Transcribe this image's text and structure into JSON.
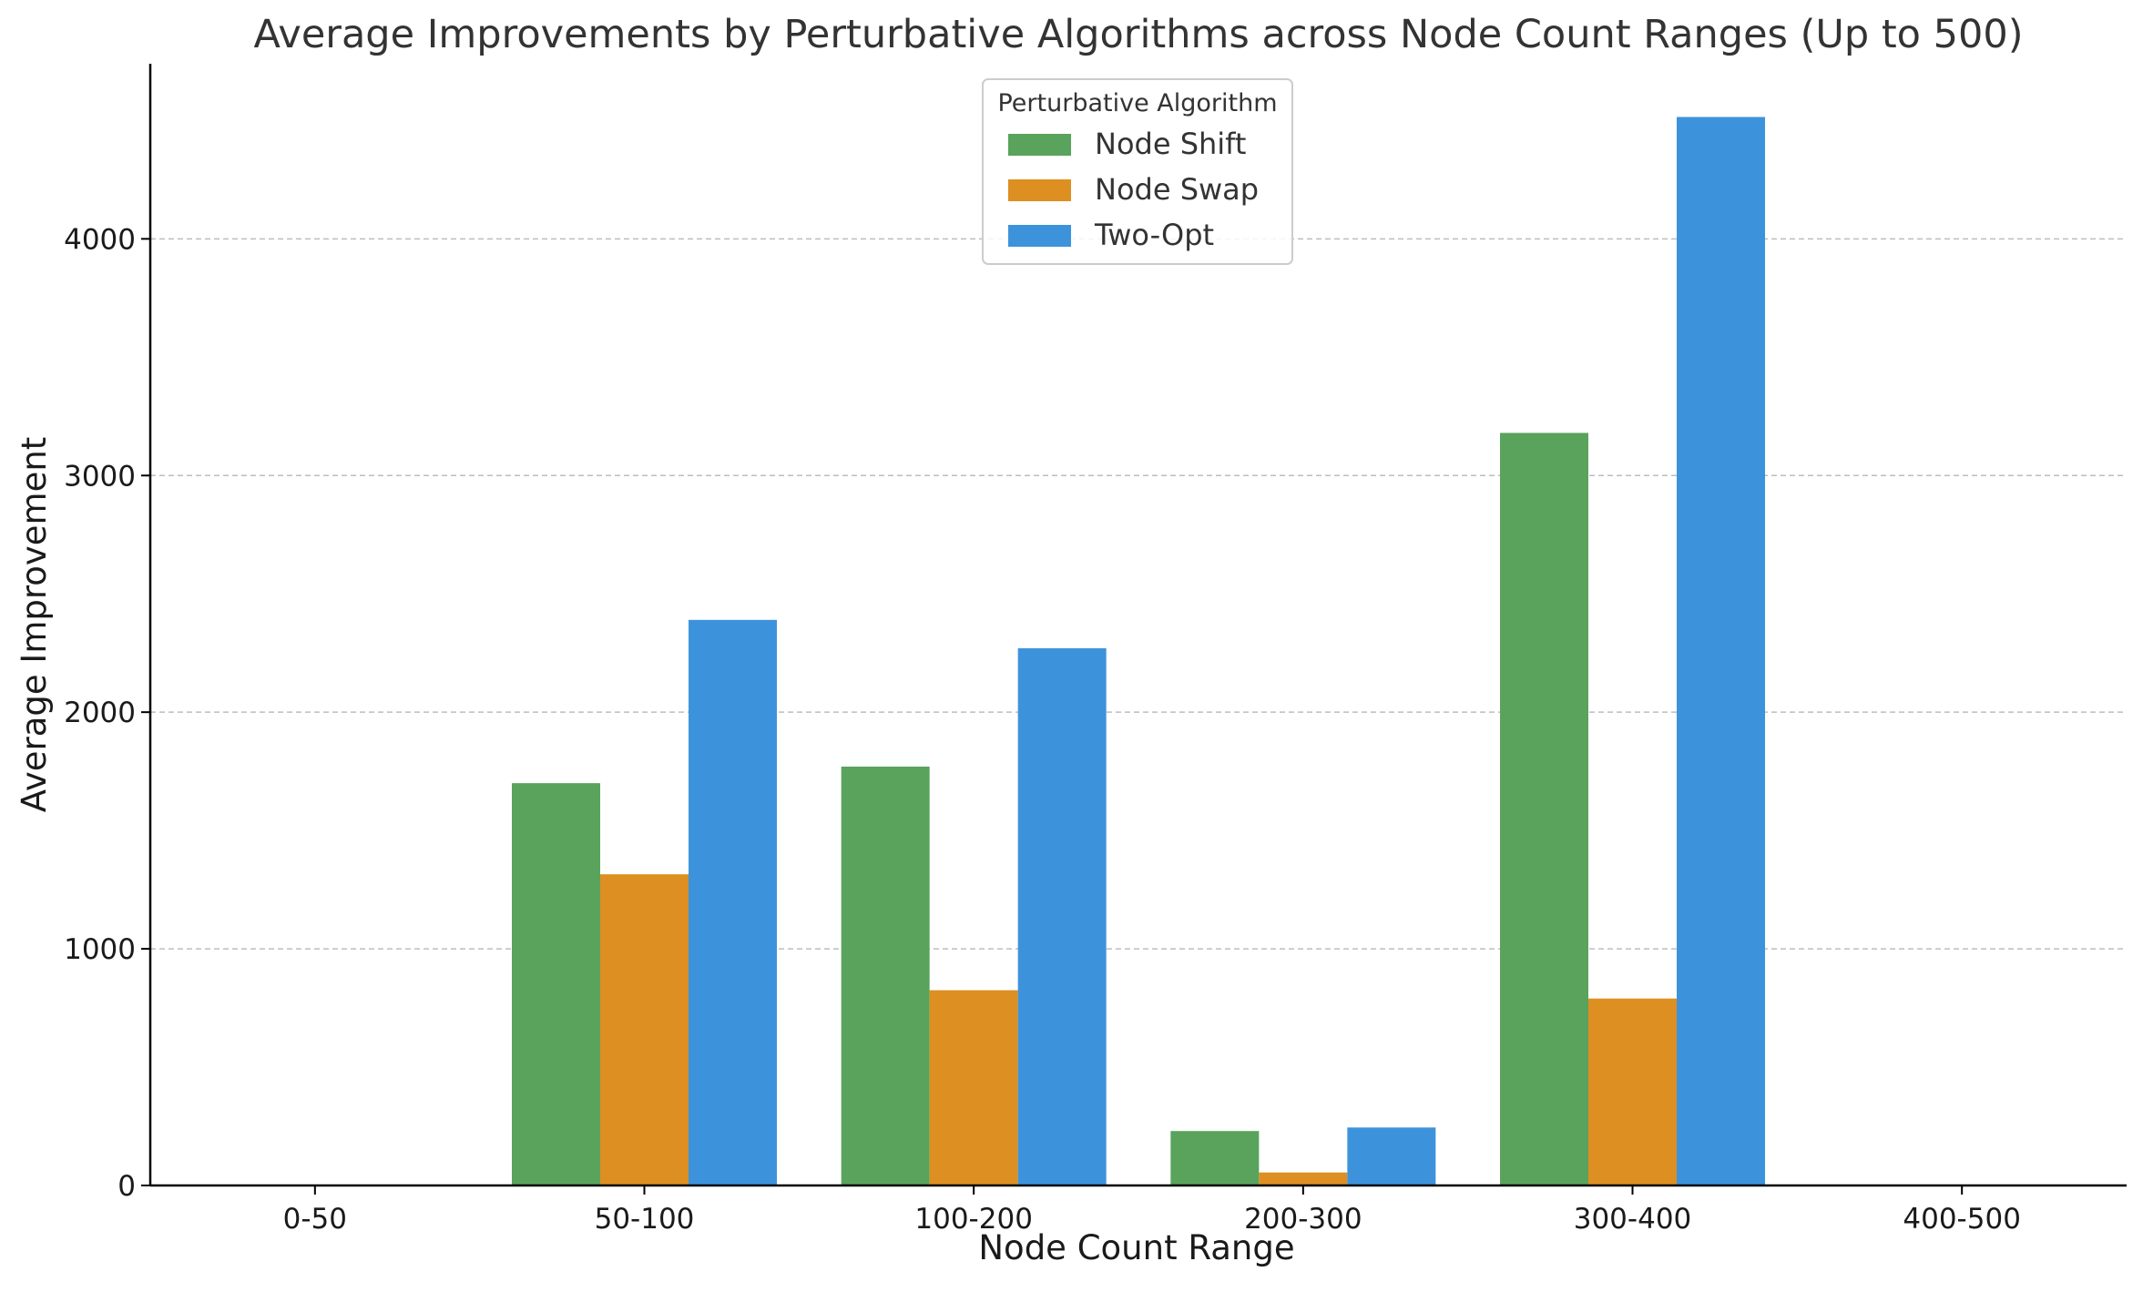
{
  "chart_data": {
    "type": "bar",
    "title": "Average Improvements by Perturbative Algorithms across Node Count Ranges (Up to 500)",
    "xlabel": "Node Count Range",
    "ylabel": "Average Improvement",
    "categories": [
      "0-50",
      "50-100",
      "100-200",
      "200-300",
      "300-400",
      "400-500"
    ],
    "ylim": [
      0,
      4740
    ],
    "yticks": [
      0,
      1000,
      2000,
      3000,
      4000
    ],
    "grid": "y-dashed",
    "legend": {
      "title": "Perturbative Algorithm",
      "placement": "top-center"
    },
    "series": [
      {
        "name": "Node Shift",
        "color": "#59a35c",
        "values": [
          0,
          1700,
          1770,
          230,
          3180,
          0
        ]
      },
      {
        "name": "Node Swap",
        "color": "#dd8f22",
        "values": [
          0,
          1315,
          825,
          55,
          790,
          0
        ]
      },
      {
        "name": "Two-Opt",
        "color": "#3d93db",
        "values": [
          0,
          2390,
          2270,
          245,
          4515,
          0
        ]
      }
    ]
  }
}
